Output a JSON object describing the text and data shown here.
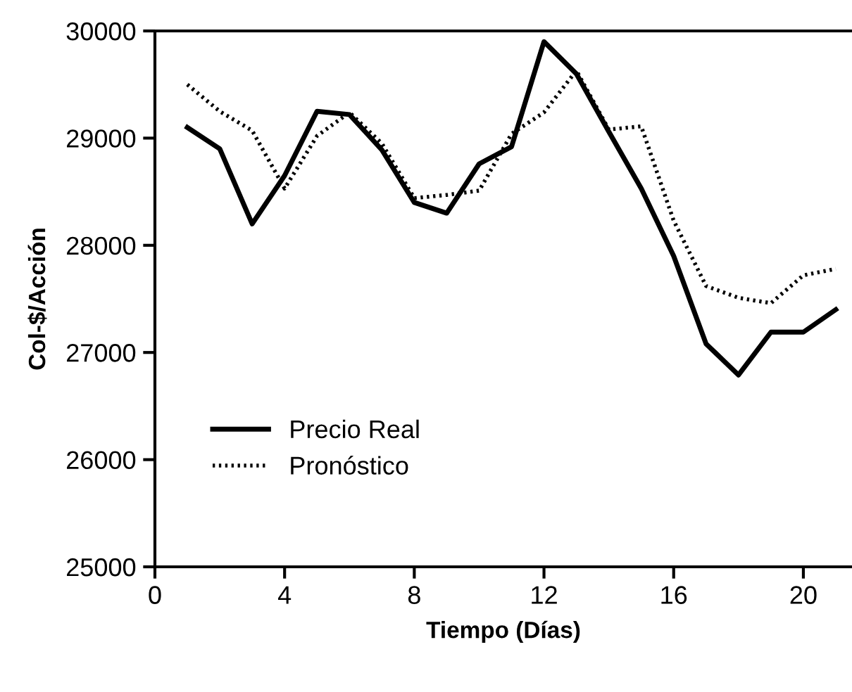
{
  "chart_data": {
    "type": "line",
    "xlabel": "Tiempo (Días)",
    "ylabel": "Col-$/Acción",
    "x": [
      1,
      2,
      3,
      4,
      5,
      6,
      7,
      8,
      9,
      10,
      11,
      12,
      13,
      14,
      15,
      16,
      17,
      18,
      19,
      20,
      21
    ],
    "series": [
      {
        "name": "Precio Real",
        "color": "#000000",
        "line_style": "solid",
        "values": [
          29100,
          28900,
          28200,
          28650,
          29250,
          29220,
          28890,
          28400,
          28300,
          28760,
          28920,
          29900,
          29600,
          29060,
          28530,
          27900,
          27080,
          26790,
          27190,
          27190,
          27400
        ]
      },
      {
        "name": "Pronóstico",
        "color": "#000000",
        "line_style": "dotted",
        "values": [
          29500,
          29250,
          29070,
          28530,
          29020,
          29240,
          28950,
          28440,
          28470,
          28510,
          29040,
          29240,
          29630,
          29080,
          29110,
          28230,
          27620,
          27510,
          27460,
          27720,
          27780
        ]
      }
    ],
    "xlim": [
      0,
      21.5
    ],
    "xticks": [
      0,
      4,
      8,
      12,
      16,
      20
    ],
    "ylim": [
      25000,
      30000
    ],
    "yticks": [
      25000,
      26000,
      27000,
      28000,
      29000,
      30000
    ],
    "grid": false,
    "legend": "bottom left",
    "marker": "none"
  }
}
